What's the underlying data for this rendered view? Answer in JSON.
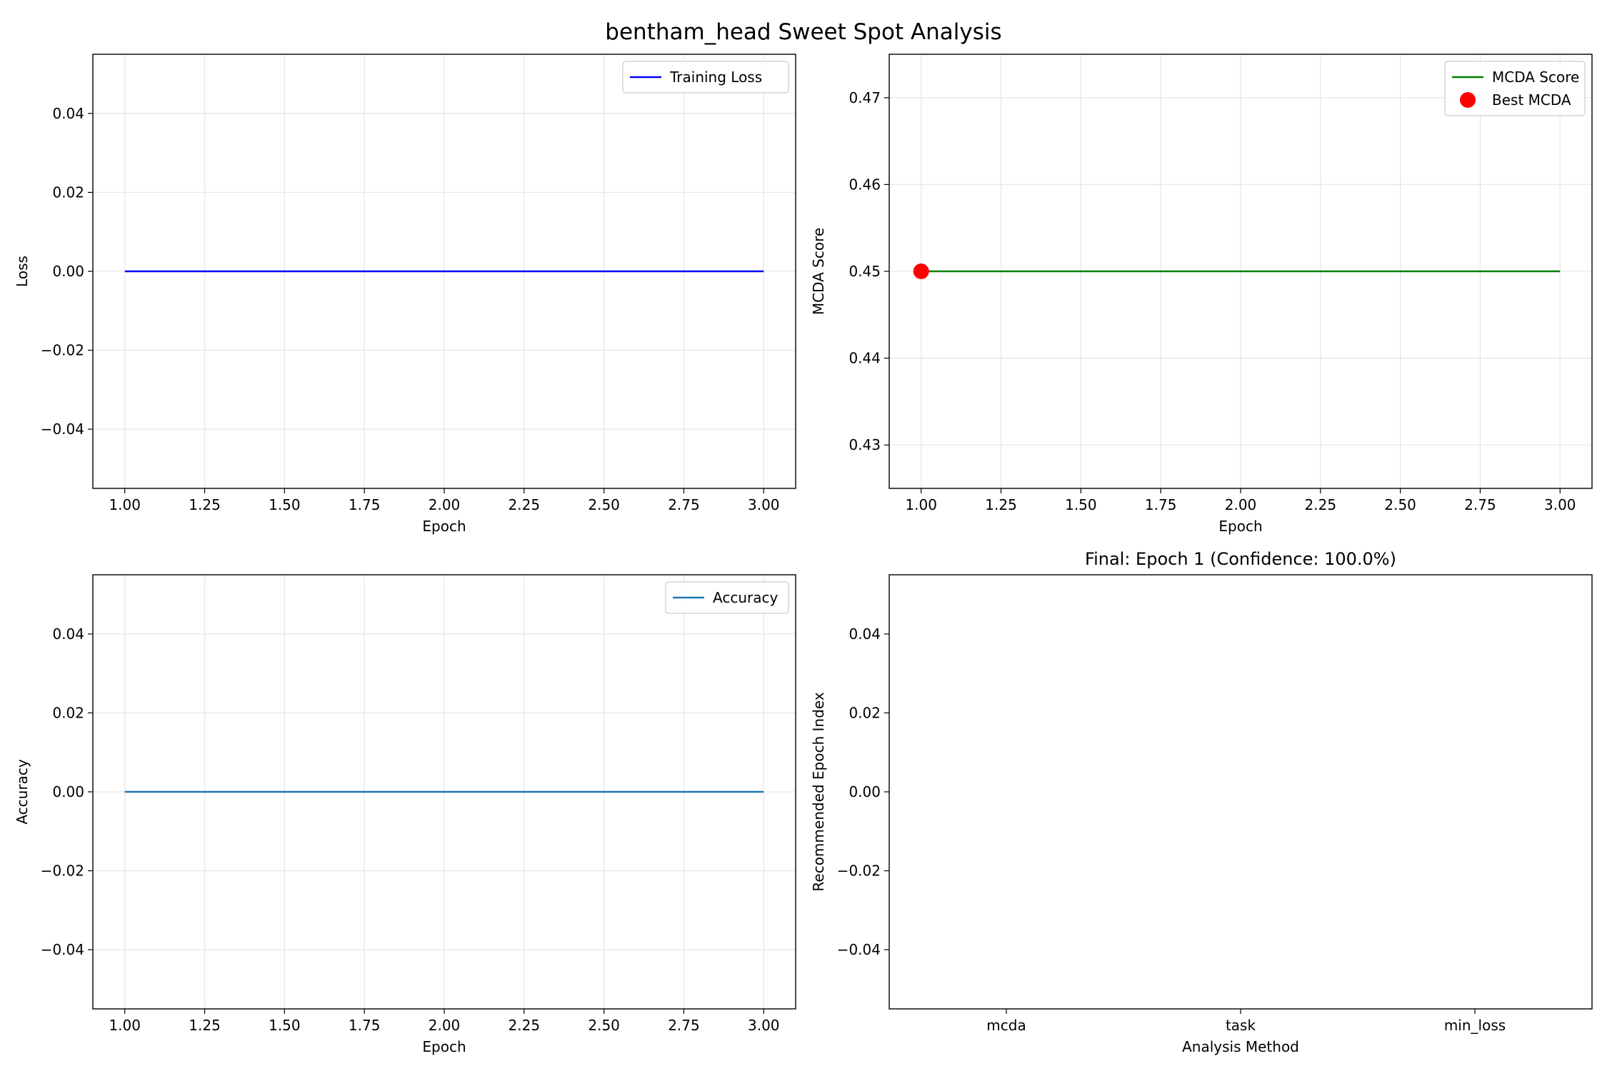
{
  "figure_title": "bentham_head Sweet Spot Analysis",
  "colors": {
    "training_loss": "#0000ff",
    "mcda": "#008000",
    "best_mcda": "#ff0000",
    "accuracy": "#1f77b4",
    "grid": "#e6e6e6"
  },
  "chart_data": [
    {
      "type": "line",
      "title": "",
      "xlabel": "Epoch",
      "ylabel": "Loss",
      "xlim": [
        0.9,
        3.1
      ],
      "ylim": [
        -0.055,
        0.055
      ],
      "xticks": [
        1.0,
        1.25,
        1.5,
        1.75,
        2.0,
        2.25,
        2.5,
        2.75,
        3.0
      ],
      "xtick_labels": [
        "1.00",
        "1.25",
        "1.50",
        "1.75",
        "2.00",
        "2.25",
        "2.50",
        "2.75",
        "3.00"
      ],
      "yticks": [
        0.04,
        0.02,
        0.0,
        -0.02,
        -0.04
      ],
      "ytick_labels": [
        "0.04",
        "0.02",
        "0.00",
        "−0.02",
        "−0.04"
      ],
      "grid": true,
      "legend_position": "upper right",
      "series": [
        {
          "name": "Training Loss",
          "x": [
            1,
            2,
            3
          ],
          "y": [
            0,
            0,
            0
          ],
          "color": "#0000ff"
        }
      ]
    },
    {
      "type": "line",
      "title": "",
      "xlabel": "Epoch",
      "ylabel": "MCDA Score",
      "xlim": [
        0.9,
        3.1
      ],
      "ylim": [
        0.425,
        0.475
      ],
      "xticks": [
        1.0,
        1.25,
        1.5,
        1.75,
        2.0,
        2.25,
        2.5,
        2.75,
        3.0
      ],
      "xtick_labels": [
        "1.00",
        "1.25",
        "1.50",
        "1.75",
        "2.00",
        "2.25",
        "2.50",
        "2.75",
        "3.00"
      ],
      "yticks": [
        0.47,
        0.46,
        0.45,
        0.44,
        0.43
      ],
      "ytick_labels": [
        "0.47",
        "0.46",
        "0.45",
        "0.44",
        "0.43"
      ],
      "grid": true,
      "legend_position": "upper right",
      "series": [
        {
          "name": "MCDA Score",
          "x": [
            1,
            2,
            3
          ],
          "y": [
            0.45,
            0.45,
            0.45
          ],
          "color": "#008000"
        }
      ],
      "markers": [
        {
          "name": "Best MCDA",
          "x": 1,
          "y": 0.45,
          "color": "#ff0000"
        }
      ]
    },
    {
      "type": "line",
      "title": "",
      "xlabel": "Epoch",
      "ylabel": "Accuracy",
      "xlim": [
        0.9,
        3.1
      ],
      "ylim": [
        -0.055,
        0.055
      ],
      "xticks": [
        1.0,
        1.25,
        1.5,
        1.75,
        2.0,
        2.25,
        2.5,
        2.75,
        3.0
      ],
      "xtick_labels": [
        "1.00",
        "1.25",
        "1.50",
        "1.75",
        "2.00",
        "2.25",
        "2.50",
        "2.75",
        "3.00"
      ],
      "yticks": [
        0.04,
        0.02,
        0.0,
        -0.02,
        -0.04
      ],
      "ytick_labels": [
        "0.04",
        "0.02",
        "0.00",
        "−0.02",
        "−0.04"
      ],
      "grid": true,
      "legend_position": "upper right",
      "series": [
        {
          "name": "Accuracy",
          "x": [
            1,
            2,
            3
          ],
          "y": [
            0,
            0,
            0
          ],
          "color": "#1f77b4"
        }
      ]
    },
    {
      "type": "bar",
      "title": "Final: Epoch 1 (Confidence: 100.0%)",
      "xlabel": "Analysis Method",
      "ylabel": "Recommended Epoch Index",
      "categories": [
        "mcda",
        "task",
        "min_loss"
      ],
      "values": [
        0,
        0,
        0
      ],
      "ylim": [
        -0.055,
        0.055
      ],
      "yticks": [
        0.04,
        0.02,
        0.0,
        -0.02,
        -0.04
      ],
      "ytick_labels": [
        "0.04",
        "0.02",
        "0.00",
        "−0.02",
        "−0.04"
      ],
      "grid": false
    }
  ]
}
